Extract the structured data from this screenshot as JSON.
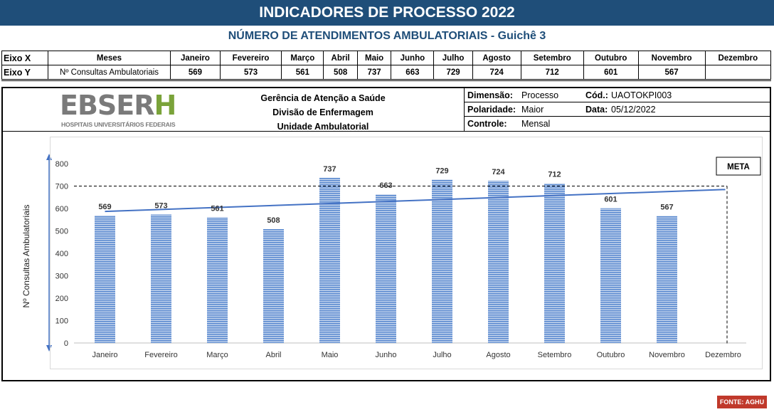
{
  "title": "INDICADORES DE PROCESSO 2022",
  "subtitle": "NÚMERO DE ATENDIMENTOS AMBULATORIAIS -  Guichê 3",
  "table": {
    "row_x_label": "Eixo X",
    "row_y_label": "Eixo Y",
    "meses_label": "Meses",
    "series_label": "Nº Consultas Ambulatoriais",
    "months": [
      "Janeiro",
      "Fevereiro",
      "Março",
      "Abril",
      "Maio",
      "Junho",
      "Julho",
      "Agosto",
      "Setembro",
      "Outubro",
      "Novembro",
      "Dezembro"
    ],
    "values": [
      "569",
      "573",
      "561",
      "508",
      "737",
      "663",
      "729",
      "724",
      "712",
      "601",
      "567",
      ""
    ]
  },
  "header": {
    "logo_text": "EBSERH",
    "logo_subtext": "HOSPITAIS UNIVERSITÁRIOS FEDERAIS",
    "org_line1": "Gerência de Atenção a Saúde",
    "org_line2": "Divisão de Enfermagem",
    "org_line3": "Unidade Ambulatorial",
    "dimensao_label": "Dimensão:",
    "dimensao_value": "Processo",
    "cod_label": "Cód.:",
    "cod_value": "UAOTOKPI003",
    "polaridade_label": "Polaridade:",
    "polaridade_value": "Maior",
    "data_label": "Data:",
    "data_value": "05/12/2022",
    "controle_label": "Controle:",
    "controle_value": "Mensal"
  },
  "chart_data": {
    "type": "bar",
    "categories": [
      "Janeiro",
      "Fevereiro",
      "Março",
      "Abril",
      "Maio",
      "Junho",
      "Julho",
      "Agosto",
      "Setembro",
      "Outubro",
      "Novembro",
      "Dezembro"
    ],
    "series": [
      {
        "values": [
          569,
          573,
          561,
          508,
          737,
          663,
          729,
          724,
          712,
          601,
          567,
          null
        ],
        "color": "#5b8ad0"
      }
    ],
    "trendline": {
      "type": "linear",
      "color": "#4472c4"
    },
    "meta_line": {
      "value": 700,
      "label": "META"
    },
    "ylabel": "Nº Consultas Ambulatoriais",
    "ylim": [
      0,
      800
    ],
    "yticks": [
      0,
      100,
      200,
      300,
      400,
      500,
      600,
      700,
      800
    ],
    "grid": false
  },
  "fonte": "FONTE: AGHU"
}
